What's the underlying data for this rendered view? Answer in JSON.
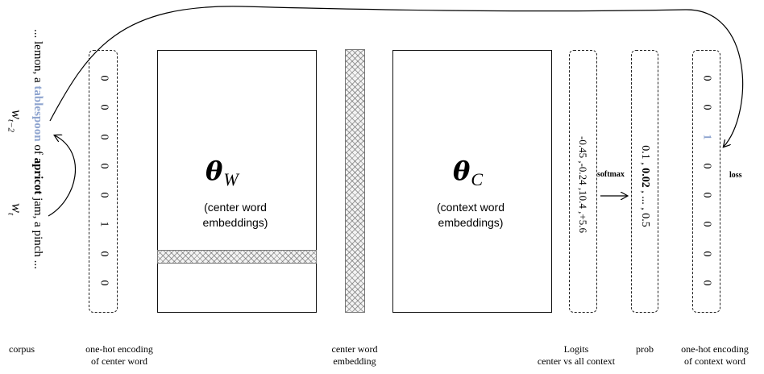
{
  "corpus": {
    "pre": "... lemon, a ",
    "highlight": "tablespoon",
    "mid": " of ",
    "center_word": "apricot",
    "post": " jam, a pinch ...",
    "context_label": "w",
    "context_sub": "t−2",
    "center_label": "w",
    "center_sub": "t",
    "caption": "corpus"
  },
  "onehot_center": {
    "values": [
      "0",
      "0",
      "0",
      "0",
      "0",
      "1",
      "0",
      "0"
    ],
    "caption_line1": "one-hot encoding",
    "caption_line2": "of center word"
  },
  "theta_w": {
    "symbol": "θ",
    "sub": "W",
    "desc_line1": "(center word",
    "desc_line2": "embeddings)"
  },
  "center_embedding": {
    "caption_line1": "center word",
    "caption_line2": "embedding"
  },
  "theta_c": {
    "symbol": "θ",
    "sub": "C",
    "desc_line1": "(context word",
    "desc_line2": "embeddings)"
  },
  "logits": {
    "text": "-0.45 ,-0.24 ,10.4 ,+5.6",
    "caption_line1": "Logits",
    "caption_line2": "center vs all context"
  },
  "softmax": {
    "label": "softmax"
  },
  "prob": {
    "p1": "0.1 ,",
    "p2": "0.02",
    "p3": ", ... ,",
    "p4": "0.5",
    "caption": "prob"
  },
  "onehot_context": {
    "values": [
      "0",
      "0",
      "1",
      "0",
      "0",
      "0",
      "0",
      "0"
    ],
    "caption_line1": "one-hot encoding",
    "caption_line2": "of context word"
  },
  "loss": {
    "label": "loss"
  }
}
